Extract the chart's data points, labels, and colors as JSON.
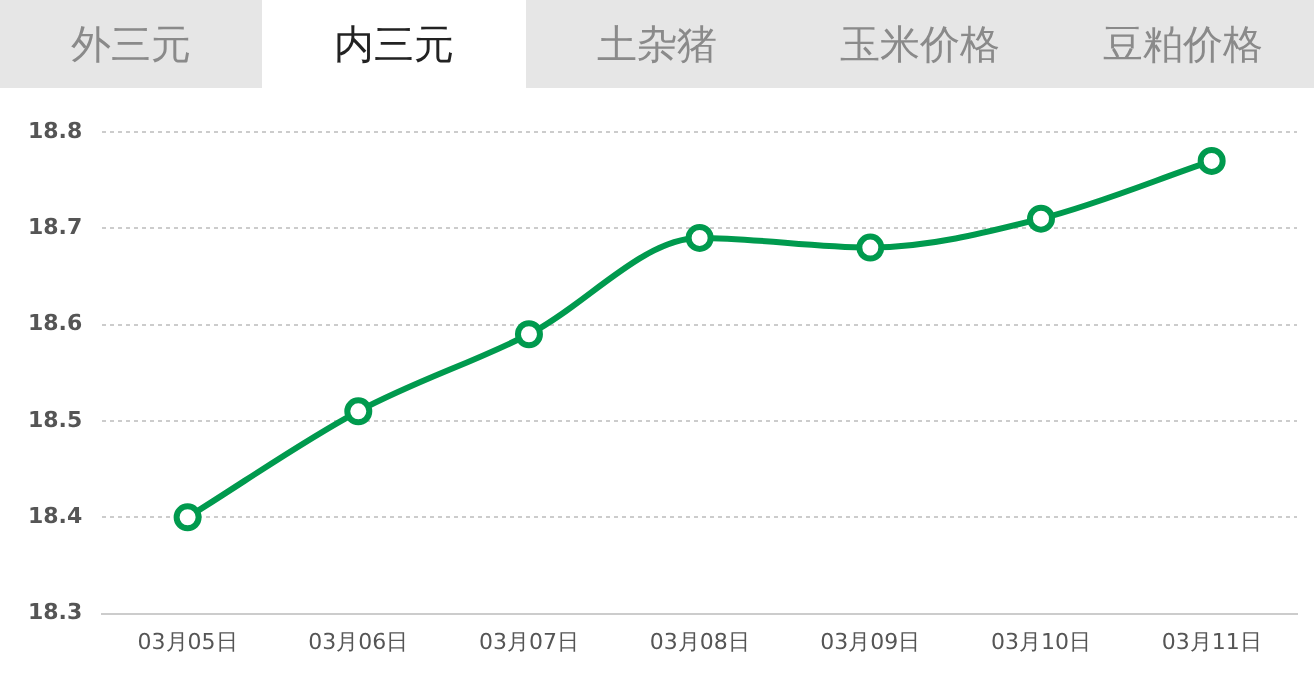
{
  "chart_data": {
    "type": "line",
    "annotations": [
      "外三元",
      "内三元",
      "土杂猪",
      "玉米价格",
      "豆粕价格"
    ],
    "categories": [
      "03月05日",
      "03月06日",
      "03月07日",
      "03月08日",
      "03月09日",
      "03月10日",
      "03月11日"
    ],
    "series": [
      {
        "color": "#009a4e",
        "values": [
          18.4,
          18.51,
          18.59,
          18.69,
          18.68,
          18.71,
          18.77
        ]
      }
    ],
    "ylim": [
      18.3,
      18.8
    ],
    "yticks": [
      18.3,
      18.4,
      18.5,
      18.6,
      18.7,
      18.8
    ],
    "grid": "y",
    "legend": false,
    "marker": "circle",
    "line_style": "solid"
  }
}
